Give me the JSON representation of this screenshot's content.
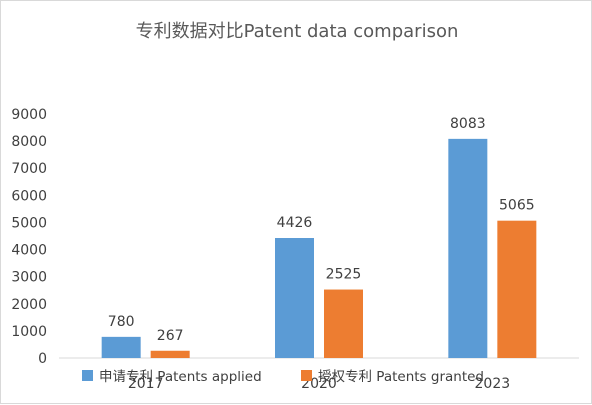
{
  "chart_data": {
    "type": "bar",
    "title": "专利数据对比Patent data comparison",
    "categories": [
      "2017",
      "2020",
      "2023"
    ],
    "series": [
      {
        "name": "申请专利 Patents applied",
        "values": [
          780,
          4426,
          8083
        ],
        "color": "#5b9bd5"
      },
      {
        "name": "授权专利 Patents granted",
        "values": [
          267,
          2525,
          5065
        ],
        "color": "#ed7d31"
      }
    ],
    "ylim": [
      0,
      9000
    ],
    "yticks": [
      0,
      1000,
      2000,
      3000,
      4000,
      5000,
      6000,
      7000,
      8000,
      9000
    ],
    "grid": false,
    "legend": "bottom",
    "axis_color": "#d9d9d9"
  }
}
